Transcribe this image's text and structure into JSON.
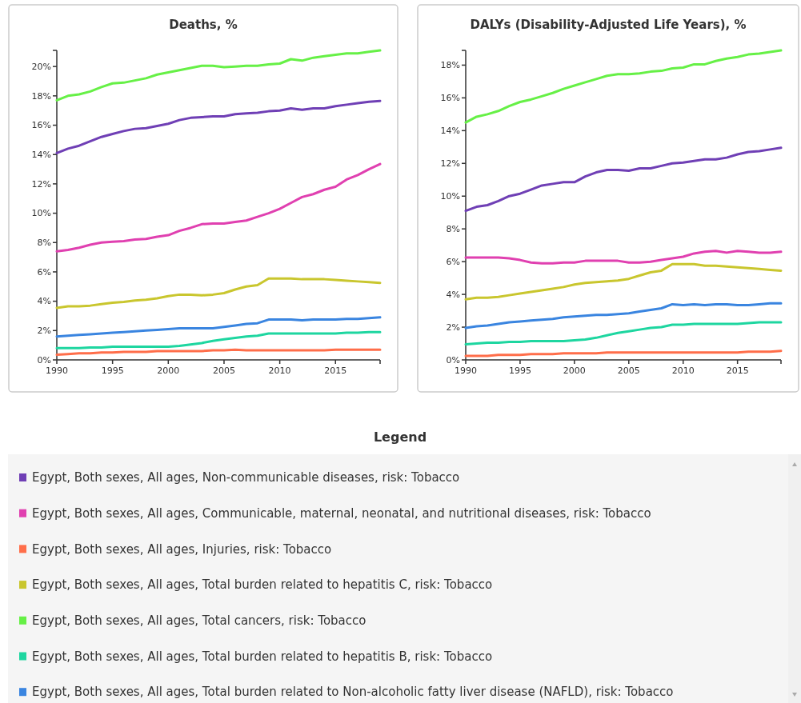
{
  "chart_data": [
    {
      "type": "line",
      "title": "Deaths, %",
      "legend": "bottom",
      "legend_title": "Legend",
      "grid": false,
      "x": [
        1990,
        1991,
        1992,
        1993,
        1994,
        1995,
        1996,
        1997,
        1998,
        1999,
        2000,
        2001,
        2002,
        2003,
        2004,
        2005,
        2006,
        2007,
        2008,
        2009,
        2010,
        2011,
        2012,
        2013,
        2014,
        2015,
        2016,
        2017,
        2018,
        2019
      ],
      "xlim": [
        1990,
        2019
      ],
      "xticks": [
        1990,
        1995,
        2000,
        2005,
        2010,
        2015
      ],
      "ylim": [
        0,
        21.1
      ],
      "yticks": [
        {
          "value": 0,
          "label": "0%"
        },
        {
          "value": 2,
          "label": "2%"
        },
        {
          "value": 4,
          "label": "4%"
        },
        {
          "value": 6,
          "label": "6%"
        },
        {
          "value": 8,
          "label": "8%"
        },
        {
          "value": 10,
          "label": "10%"
        },
        {
          "value": 12,
          "label": "12%"
        },
        {
          "value": 14,
          "label": "14%"
        },
        {
          "value": 16,
          "label": "16%"
        },
        {
          "value": 18,
          "label": "18%"
        },
        {
          "value": 20,
          "label": "20%"
        }
      ],
      "series": [
        {
          "name": "Egypt, Both sexes, All ages, Non-communicable diseases, risk: Tobacco",
          "color": "#6f3fb5",
          "values": [
            14.1,
            14.4,
            14.6,
            14.9,
            15.2,
            15.4,
            15.6,
            15.75,
            15.8,
            15.95,
            16.1,
            16.35,
            16.5,
            16.55,
            16.6,
            16.6,
            16.75,
            16.8,
            16.85,
            16.95,
            17.0,
            17.15,
            17.05,
            17.15,
            17.15,
            17.3,
            17.4,
            17.5,
            17.6,
            17.65
          ]
        },
        {
          "name": "Egypt, Both sexes, All ages, Communicable, maternal, neonatal, and nutritional diseases, risk: Tobacco",
          "color": "#e040b0",
          "values": [
            7.4,
            7.5,
            7.65,
            7.85,
            8.0,
            8.05,
            8.1,
            8.2,
            8.25,
            8.4,
            8.5,
            8.8,
            9.0,
            9.25,
            9.3,
            9.3,
            9.4,
            9.5,
            9.75,
            10.0,
            10.3,
            10.7,
            11.1,
            11.3,
            11.6,
            11.8,
            12.3,
            12.6,
            13.0,
            13.35
          ]
        },
        {
          "name": "Egypt, Both sexes, All ages, Injuries, risk: Tobacco",
          "color": "#ff6e4a",
          "values": [
            0.35,
            0.4,
            0.45,
            0.45,
            0.5,
            0.5,
            0.55,
            0.55,
            0.55,
            0.6,
            0.6,
            0.6,
            0.6,
            0.6,
            0.65,
            0.65,
            0.7,
            0.65,
            0.65,
            0.65,
            0.65,
            0.65,
            0.65,
            0.65,
            0.65,
            0.7,
            0.7,
            0.7,
            0.7,
            0.7
          ]
        },
        {
          "name": "Egypt, Both sexes, All ages, Total burden related to hepatitis C, risk: Tobacco",
          "color": "#c9c62e",
          "values": [
            3.55,
            3.65,
            3.65,
            3.7,
            3.8,
            3.9,
            3.95,
            4.05,
            4.1,
            4.2,
            4.35,
            4.45,
            4.45,
            4.4,
            4.45,
            4.55,
            4.8,
            5.0,
            5.1,
            5.55,
            5.55,
            5.55,
            5.5,
            5.5,
            5.5,
            5.45,
            5.4,
            5.35,
            5.3,
            5.25
          ]
        },
        {
          "name": "Egypt, Both sexes, All ages, Total cancers, risk: Tobacco",
          "color": "#66f046",
          "values": [
            17.7,
            18.0,
            18.1,
            18.3,
            18.6,
            18.85,
            18.9,
            19.05,
            19.2,
            19.45,
            19.6,
            19.75,
            19.9,
            20.05,
            20.05,
            19.95,
            20.0,
            20.05,
            20.05,
            20.15,
            20.2,
            20.5,
            20.4,
            20.6,
            20.7,
            20.8,
            20.9,
            20.9,
            21.0,
            21.1
          ]
        },
        {
          "name": "Egypt, Both sexes, All ages, Total burden related to hepatitis B, risk: Tobacco",
          "color": "#1ed6a0",
          "values": [
            0.8,
            0.8,
            0.8,
            0.85,
            0.85,
            0.9,
            0.9,
            0.9,
            0.9,
            0.9,
            0.9,
            0.95,
            1.05,
            1.15,
            1.3,
            1.4,
            1.5,
            1.6,
            1.65,
            1.8,
            1.8,
            1.8,
            1.8,
            1.8,
            1.8,
            1.8,
            1.85,
            1.85,
            1.9,
            1.9
          ]
        },
        {
          "name": "Egypt, Both sexes, All ages, Total burden related to Non-alcoholic fatty liver disease (NAFLD), risk: Tobacco",
          "color": "#3a85e0",
          "values": [
            1.6,
            1.65,
            1.7,
            1.75,
            1.8,
            1.85,
            1.9,
            1.95,
            2.0,
            2.05,
            2.1,
            2.15,
            2.15,
            2.15,
            2.15,
            2.25,
            2.35,
            2.45,
            2.5,
            2.75,
            2.75,
            2.75,
            2.7,
            2.75,
            2.75,
            2.75,
            2.8,
            2.8,
            2.85,
            2.9
          ]
        }
      ]
    },
    {
      "type": "line",
      "title": "DALYs (Disability-Adjusted Life Years), %",
      "grid": false,
      "x": [
        1990,
        1991,
        1992,
        1993,
        1994,
        1995,
        1996,
        1997,
        1998,
        1999,
        2000,
        2001,
        2002,
        2003,
        2004,
        2005,
        2006,
        2007,
        2008,
        2009,
        2010,
        2011,
        2012,
        2013,
        2014,
        2015,
        2016,
        2017,
        2018,
        2019
      ],
      "xlim": [
        1990,
        2019
      ],
      "xticks": [
        1990,
        1995,
        2000,
        2005,
        2010,
        2015
      ],
      "ylim": [
        0,
        18.9
      ],
      "yticks": [
        {
          "value": 0,
          "label": "0%"
        },
        {
          "value": 2,
          "label": "2%"
        },
        {
          "value": 4,
          "label": "4%"
        },
        {
          "value": 6,
          "label": "6%"
        },
        {
          "value": 8,
          "label": "8%"
        },
        {
          "value": 10,
          "label": "10%"
        },
        {
          "value": 12,
          "label": "12%"
        },
        {
          "value": 14,
          "label": "14%"
        },
        {
          "value": 16,
          "label": "16%"
        },
        {
          "value": 18,
          "label": "18%"
        }
      ],
      "series": [
        {
          "color": "#6f3fb5",
          "values": [
            9.1,
            9.35,
            9.45,
            9.7,
            10.0,
            10.15,
            10.4,
            10.65,
            10.75,
            10.85,
            10.85,
            11.2,
            11.45,
            11.6,
            11.6,
            11.55,
            11.7,
            11.7,
            11.85,
            12.0,
            12.05,
            12.15,
            12.25,
            12.25,
            12.35,
            12.55,
            12.7,
            12.75,
            12.85,
            12.95
          ]
        },
        {
          "color": "#e040b0",
          "values": [
            6.25,
            6.25,
            6.25,
            6.25,
            6.2,
            6.1,
            5.95,
            5.9,
            5.9,
            5.95,
            5.95,
            6.05,
            6.05,
            6.05,
            6.05,
            5.95,
            5.95,
            6.0,
            6.1,
            6.2,
            6.3,
            6.5,
            6.6,
            6.65,
            6.55,
            6.65,
            6.6,
            6.55,
            6.55,
            6.6
          ]
        },
        {
          "color": "#ff6e4a",
          "values": [
            0.25,
            0.25,
            0.25,
            0.3,
            0.3,
            0.3,
            0.35,
            0.35,
            0.35,
            0.4,
            0.4,
            0.4,
            0.4,
            0.45,
            0.45,
            0.45,
            0.45,
            0.45,
            0.45,
            0.45,
            0.45,
            0.45,
            0.45,
            0.45,
            0.45,
            0.45,
            0.5,
            0.5,
            0.5,
            0.55
          ]
        },
        {
          "color": "#c9c62e",
          "values": [
            3.7,
            3.8,
            3.8,
            3.85,
            3.95,
            4.05,
            4.15,
            4.25,
            4.35,
            4.45,
            4.6,
            4.7,
            4.75,
            4.8,
            4.85,
            4.95,
            5.15,
            5.35,
            5.45,
            5.85,
            5.85,
            5.85,
            5.75,
            5.75,
            5.7,
            5.65,
            5.6,
            5.55,
            5.5,
            5.45
          ]
        },
        {
          "color": "#66f046",
          "values": [
            14.5,
            14.85,
            15.0,
            15.2,
            15.5,
            15.75,
            15.9,
            16.1,
            16.3,
            16.55,
            16.75,
            16.95,
            17.15,
            17.35,
            17.45,
            17.45,
            17.5,
            17.6,
            17.65,
            17.8,
            17.85,
            18.05,
            18.05,
            18.25,
            18.4,
            18.5,
            18.65,
            18.7,
            18.8,
            18.9
          ]
        },
        {
          "color": "#1ed6a0",
          "values": [
            0.95,
            1.0,
            1.05,
            1.05,
            1.1,
            1.1,
            1.15,
            1.15,
            1.15,
            1.15,
            1.2,
            1.25,
            1.35,
            1.5,
            1.65,
            1.75,
            1.85,
            1.95,
            2.0,
            2.15,
            2.15,
            2.2,
            2.2,
            2.2,
            2.2,
            2.2,
            2.25,
            2.3,
            2.3,
            2.3
          ]
        },
        {
          "color": "#3a85e0",
          "values": [
            1.95,
            2.05,
            2.1,
            2.2,
            2.3,
            2.35,
            2.4,
            2.45,
            2.5,
            2.6,
            2.65,
            2.7,
            2.75,
            2.75,
            2.8,
            2.85,
            2.95,
            3.05,
            3.15,
            3.4,
            3.35,
            3.4,
            3.35,
            3.4,
            3.4,
            3.35,
            3.35,
            3.4,
            3.45,
            3.45
          ]
        }
      ]
    }
  ]
}
